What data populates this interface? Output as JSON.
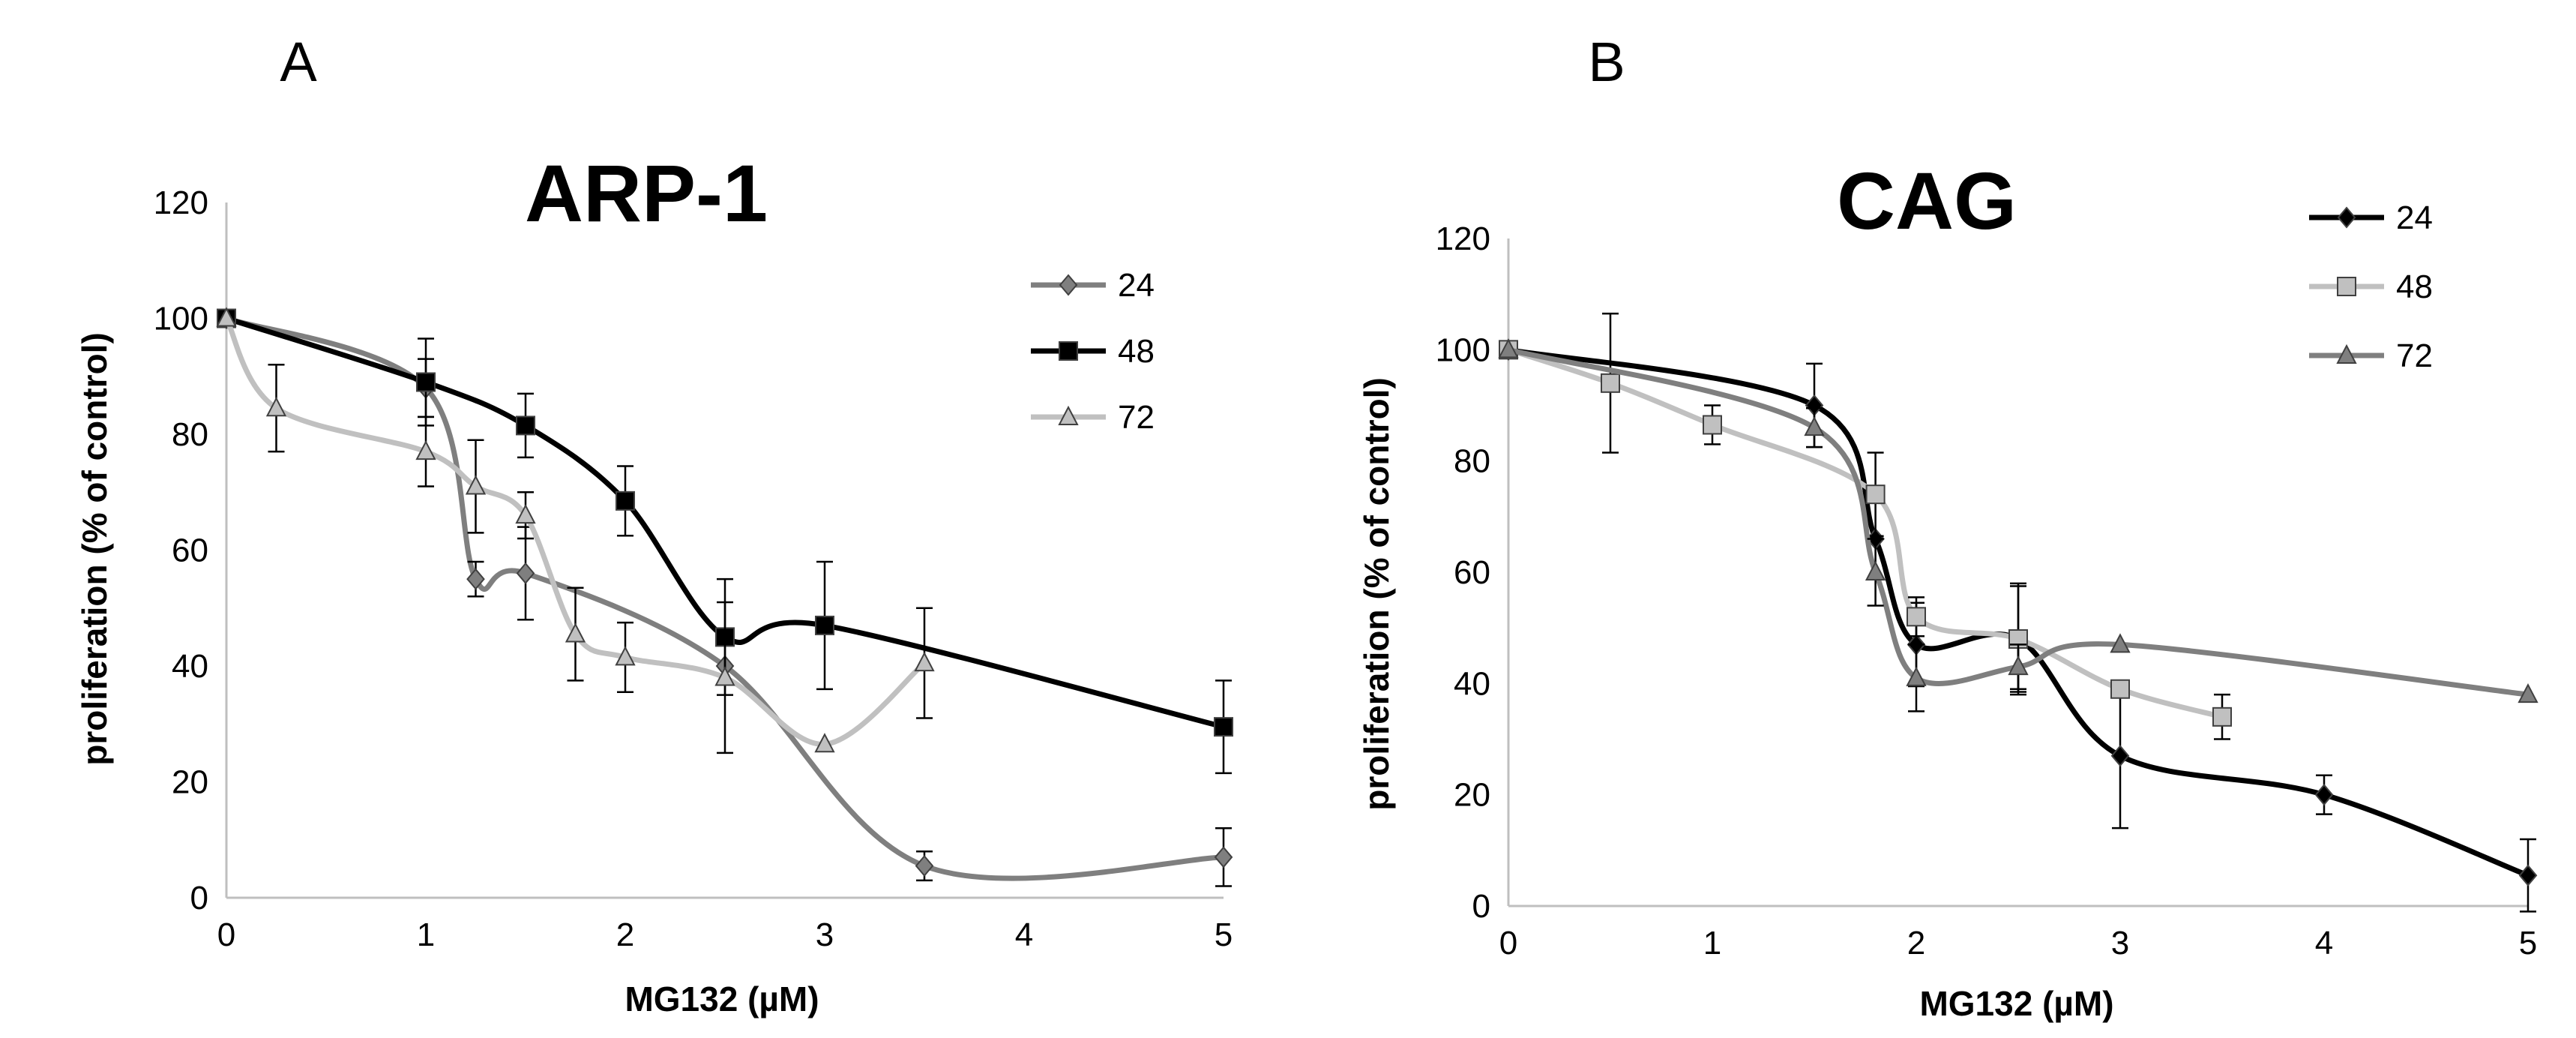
{
  "panels": [
    {
      "letter": "A"
    },
    {
      "letter": "B"
    }
  ],
  "chart_data": [
    {
      "type": "line",
      "title": "ARP-1",
      "xlabel": "MG132 (µM)",
      "ylabel": "proliferation (% of control)",
      "xlim": [
        0,
        5
      ],
      "ylim": [
        0,
        120
      ],
      "xticks": [
        "0",
        "1",
        "2",
        "3",
        "4",
        "5"
      ],
      "yticks": [
        "0",
        "20",
        "40",
        "60",
        "80",
        "100",
        "120"
      ],
      "grid": false,
      "legend_position": "top-right",
      "series": [
        {
          "name": "24",
          "color": "#7f7f7f",
          "marker": "diamond",
          "points": [
            {
              "x": 0,
              "y": 100,
              "err": 0
            },
            {
              "x": 1,
              "y": 88,
              "err": 5
            },
            {
              "x": 1.25,
              "y": 55,
              "err": 3
            },
            {
              "x": 1.5,
              "y": 56,
              "err": 8
            },
            {
              "x": 2.5,
              "y": 40,
              "err": 0
            },
            {
              "x": 3.5,
              "y": 5.5,
              "err": 2.5
            },
            {
              "x": 5,
              "y": 7,
              "err": 5
            }
          ]
        },
        {
          "name": "48",
          "color": "#000000",
          "marker": "square",
          "points": [
            {
              "x": 0,
              "y": 100,
              "err": 0
            },
            {
              "x": 1,
              "y": 89,
              "err": 7.5
            },
            {
              "x": 1.5,
              "y": 81.5,
              "err": 5.5
            },
            {
              "x": 2,
              "y": 68.5,
              "err": 6
            },
            {
              "x": 2.5,
              "y": 45,
              "err": 10
            },
            {
              "x": 3,
              "y": 47,
              "err": 11
            },
            {
              "x": 5,
              "y": 29.5,
              "err": 8
            }
          ]
        },
        {
          "name": "72",
          "color": "#c0c0c0",
          "marker": "triangle",
          "points": [
            {
              "x": 0,
              "y": 100,
              "err": 0
            },
            {
              "x": 0.25,
              "y": 84.5,
              "err": 7.5
            },
            {
              "x": 1,
              "y": 77,
              "err": 6
            },
            {
              "x": 1.25,
              "y": 71,
              "err": 8
            },
            {
              "x": 1.5,
              "y": 66,
              "err": 4
            },
            {
              "x": 1.75,
              "y": 45.5,
              "err": 8
            },
            {
              "x": 2,
              "y": 41.5,
              "err": 6
            },
            {
              "x": 2.5,
              "y": 38,
              "err": 13
            },
            {
              "x": 3,
              "y": 26.5,
              "err": 0
            },
            {
              "x": 3.5,
              "y": 40.5,
              "err": 9.5
            }
          ]
        }
      ]
    },
    {
      "type": "line",
      "title": "CAG",
      "xlabel": "MG132 (µM)",
      "ylabel": "proliferation (% of control)",
      "xlim": [
        0,
        5
      ],
      "ylim": [
        0,
        120
      ],
      "xticks": [
        "0",
        "1",
        "2",
        "3",
        "4",
        "5"
      ],
      "yticks": [
        "0",
        "20",
        "40",
        "60",
        "80",
        "100",
        "120"
      ],
      "grid": false,
      "legend_position": "top-right",
      "series": [
        {
          "name": "24",
          "color": "#000000",
          "marker": "diamond",
          "points": [
            {
              "x": 0,
              "y": 100,
              "err": 0
            },
            {
              "x": 1.5,
              "y": 90,
              "err": 7.5
            },
            {
              "x": 1.8,
              "y": 66,
              "err": 0
            },
            {
              "x": 2,
              "y": 47,
              "err": 7.5
            },
            {
              "x": 2.5,
              "y": 48,
              "err": 10
            },
            {
              "x": 3,
              "y": 27,
              "err": 13
            },
            {
              "x": 4,
              "y": 20,
              "err": 3.5
            },
            {
              "x": 5,
              "y": 5.5,
              "err": 6.5
            }
          ]
        },
        {
          "name": "48",
          "color": "#c0c0c0",
          "marker": "square",
          "points": [
            {
              "x": 0,
              "y": 100,
              "err": 0
            },
            {
              "x": 0.5,
              "y": 94,
              "err": 12.5
            },
            {
              "x": 1,
              "y": 86.5,
              "err": 3.5
            },
            {
              "x": 1.8,
              "y": 74,
              "err": 7.5
            },
            {
              "x": 2,
              "y": 52,
              "err": 3.5
            },
            {
              "x": 2.5,
              "y": 48,
              "err": 9.5
            },
            {
              "x": 3,
              "y": 39,
              "err": 0
            },
            {
              "x": 3.5,
              "y": 34,
              "err": 4
            }
          ]
        },
        {
          "name": "72",
          "color": "#7f7f7f",
          "marker": "triangle",
          "points": [
            {
              "x": 0,
              "y": 100,
              "err": 0
            },
            {
              "x": 1.5,
              "y": 86,
              "err": 3.5
            },
            {
              "x": 1.8,
              "y": 60,
              "err": 6
            },
            {
              "x": 2,
              "y": 41,
              "err": 6
            },
            {
              "x": 2.5,
              "y": 43,
              "err": 4
            },
            {
              "x": 3,
              "y": 47,
              "err": 0
            },
            {
              "x": 5,
              "y": 38,
              "err": 0
            }
          ]
        }
      ]
    }
  ]
}
